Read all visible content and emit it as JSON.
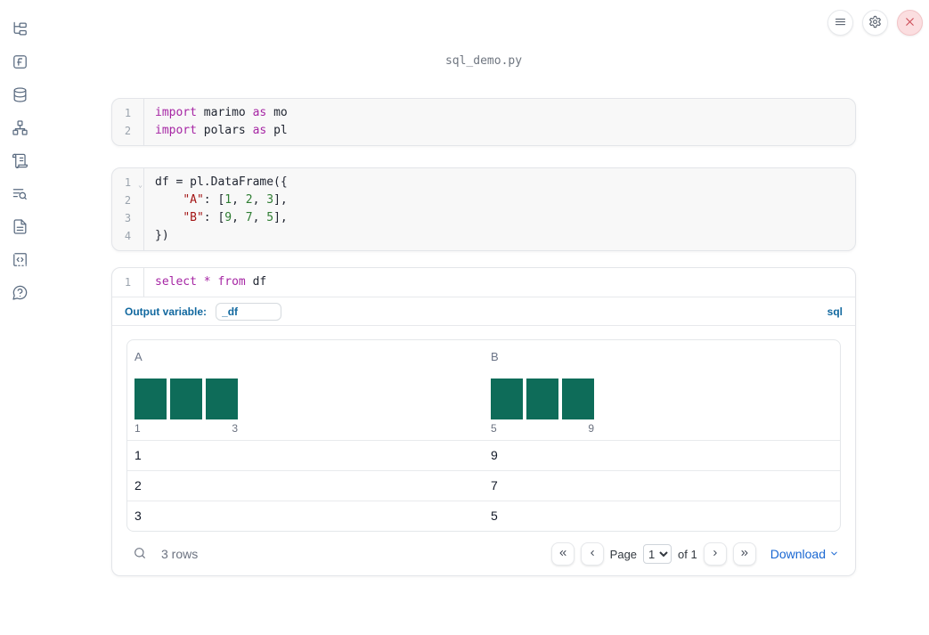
{
  "page": {
    "title": "sql_demo.py"
  },
  "topbar": {
    "menu_icon": "hamburger-menu-icon",
    "settings_icon": "gear-icon",
    "close_icon": "close-x-icon"
  },
  "sidebar": {
    "icons": [
      "file-tree-icon",
      "function-square-icon",
      "database-icon",
      "dependency-graph-icon",
      "logs-scroll-icon",
      "text-search-icon",
      "document-icon",
      "code-snippets-icon",
      "help-chat-icon"
    ]
  },
  "cells": [
    {
      "kind": "python",
      "lines": [
        {
          "num": "1",
          "tokens": [
            {
              "t": "import",
              "c": "kw"
            },
            {
              "t": " marimo ",
              "c": "plain"
            },
            {
              "t": "as",
              "c": "kw"
            },
            {
              "t": " mo",
              "c": "plain"
            }
          ]
        },
        {
          "num": "2",
          "tokens": [
            {
              "t": "import",
              "c": "kw"
            },
            {
              "t": " polars ",
              "c": "plain"
            },
            {
              "t": "as",
              "c": "kw"
            },
            {
              "t": " pl",
              "c": "plain"
            }
          ]
        }
      ]
    },
    {
      "kind": "python",
      "lines": [
        {
          "num": "1",
          "fold": true,
          "tokens": [
            {
              "t": "df = pl.DataFrame({",
              "c": "plain"
            }
          ]
        },
        {
          "num": "2",
          "tokens": [
            {
              "t": "    ",
              "c": "plain"
            },
            {
              "t": "\"A\"",
              "c": "str"
            },
            {
              "t": ": [",
              "c": "plain"
            },
            {
              "t": "1",
              "c": "num"
            },
            {
              "t": ", ",
              "c": "plain"
            },
            {
              "t": "2",
              "c": "num"
            },
            {
              "t": ", ",
              "c": "plain"
            },
            {
              "t": "3",
              "c": "num"
            },
            {
              "t": "],",
              "c": "plain"
            }
          ]
        },
        {
          "num": "3",
          "tokens": [
            {
              "t": "    ",
              "c": "plain"
            },
            {
              "t": "\"B\"",
              "c": "str"
            },
            {
              "t": ": [",
              "c": "plain"
            },
            {
              "t": "9",
              "c": "num"
            },
            {
              "t": ", ",
              "c": "plain"
            },
            {
              "t": "7",
              "c": "num"
            },
            {
              "t": ", ",
              "c": "plain"
            },
            {
              "t": "5",
              "c": "num"
            },
            {
              "t": "],",
              "c": "plain"
            }
          ]
        },
        {
          "num": "4",
          "tokens": [
            {
              "t": "})",
              "c": "plain"
            }
          ]
        }
      ]
    },
    {
      "kind": "sql",
      "lines": [
        {
          "num": "1",
          "tokens": [
            {
              "t": "select",
              "c": "kw"
            },
            {
              "t": " ",
              "c": "plain"
            },
            {
              "t": "*",
              "c": "kw"
            },
            {
              "t": " ",
              "c": "plain"
            },
            {
              "t": "from",
              "c": "kw"
            },
            {
              "t": " df",
              "c": "plain"
            }
          ]
        }
      ],
      "output_variable_label": "Output variable:",
      "output_variable_value": "_df",
      "language_badge": "sql"
    }
  ],
  "table": {
    "columns": [
      {
        "name": "A",
        "histogram": {
          "type": "bar",
          "bar_heights": [
            1,
            1,
            1
          ],
          "min_label": "1",
          "max_label": "3",
          "color": "#0e6c59"
        }
      },
      {
        "name": "B",
        "histogram": {
          "type": "bar",
          "bar_heights": [
            1,
            1,
            1
          ],
          "min_label": "5",
          "max_label": "9",
          "color": "#0e6c59"
        }
      }
    ],
    "rows": [
      [
        "1",
        "9"
      ],
      [
        "2",
        "7"
      ],
      [
        "3",
        "5"
      ]
    ],
    "footer": {
      "row_count": "3 rows",
      "page_label": "Page",
      "page_value": "1",
      "of_label": "of 1",
      "download_label": "Download"
    }
  }
}
